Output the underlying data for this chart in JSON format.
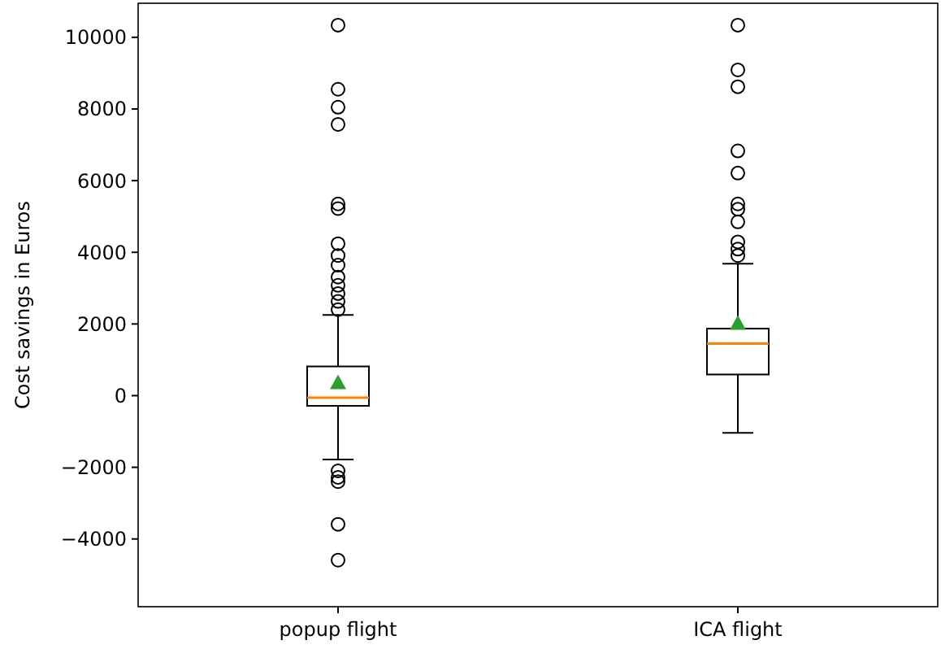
{
  "chart_data": {
    "type": "box",
    "ylabel": "Cost savings in Euros",
    "categories": [
      "popup flight",
      "ICA flight"
    ],
    "ylim": [
      -5890,
      10950
    ],
    "yticks": [
      -4000,
      -2000,
      0,
      2000,
      4000,
      6000,
      8000,
      10000
    ],
    "boxes": [
      {
        "low": -1780,
        "q1": -285,
        "median": -60,
        "q3": 815,
        "high": 2250,
        "mean": 360,
        "outliers": [
          10340,
          8550,
          8050,
          7570,
          5350,
          5220,
          4240,
          3910,
          3640,
          3310,
          3080,
          2850,
          2630,
          2400,
          -2100,
          -2280,
          -2400,
          -3590,
          -4590
        ]
      },
      {
        "low": -1040,
        "q1": 590,
        "median": 1450,
        "q3": 1870,
        "high": 3680,
        "mean": 2020,
        "outliers": [
          10340,
          9090,
          8620,
          6830,
          6210,
          5350,
          5200,
          4850,
          4290,
          4090,
          3910
        ]
      }
    ]
  }
}
